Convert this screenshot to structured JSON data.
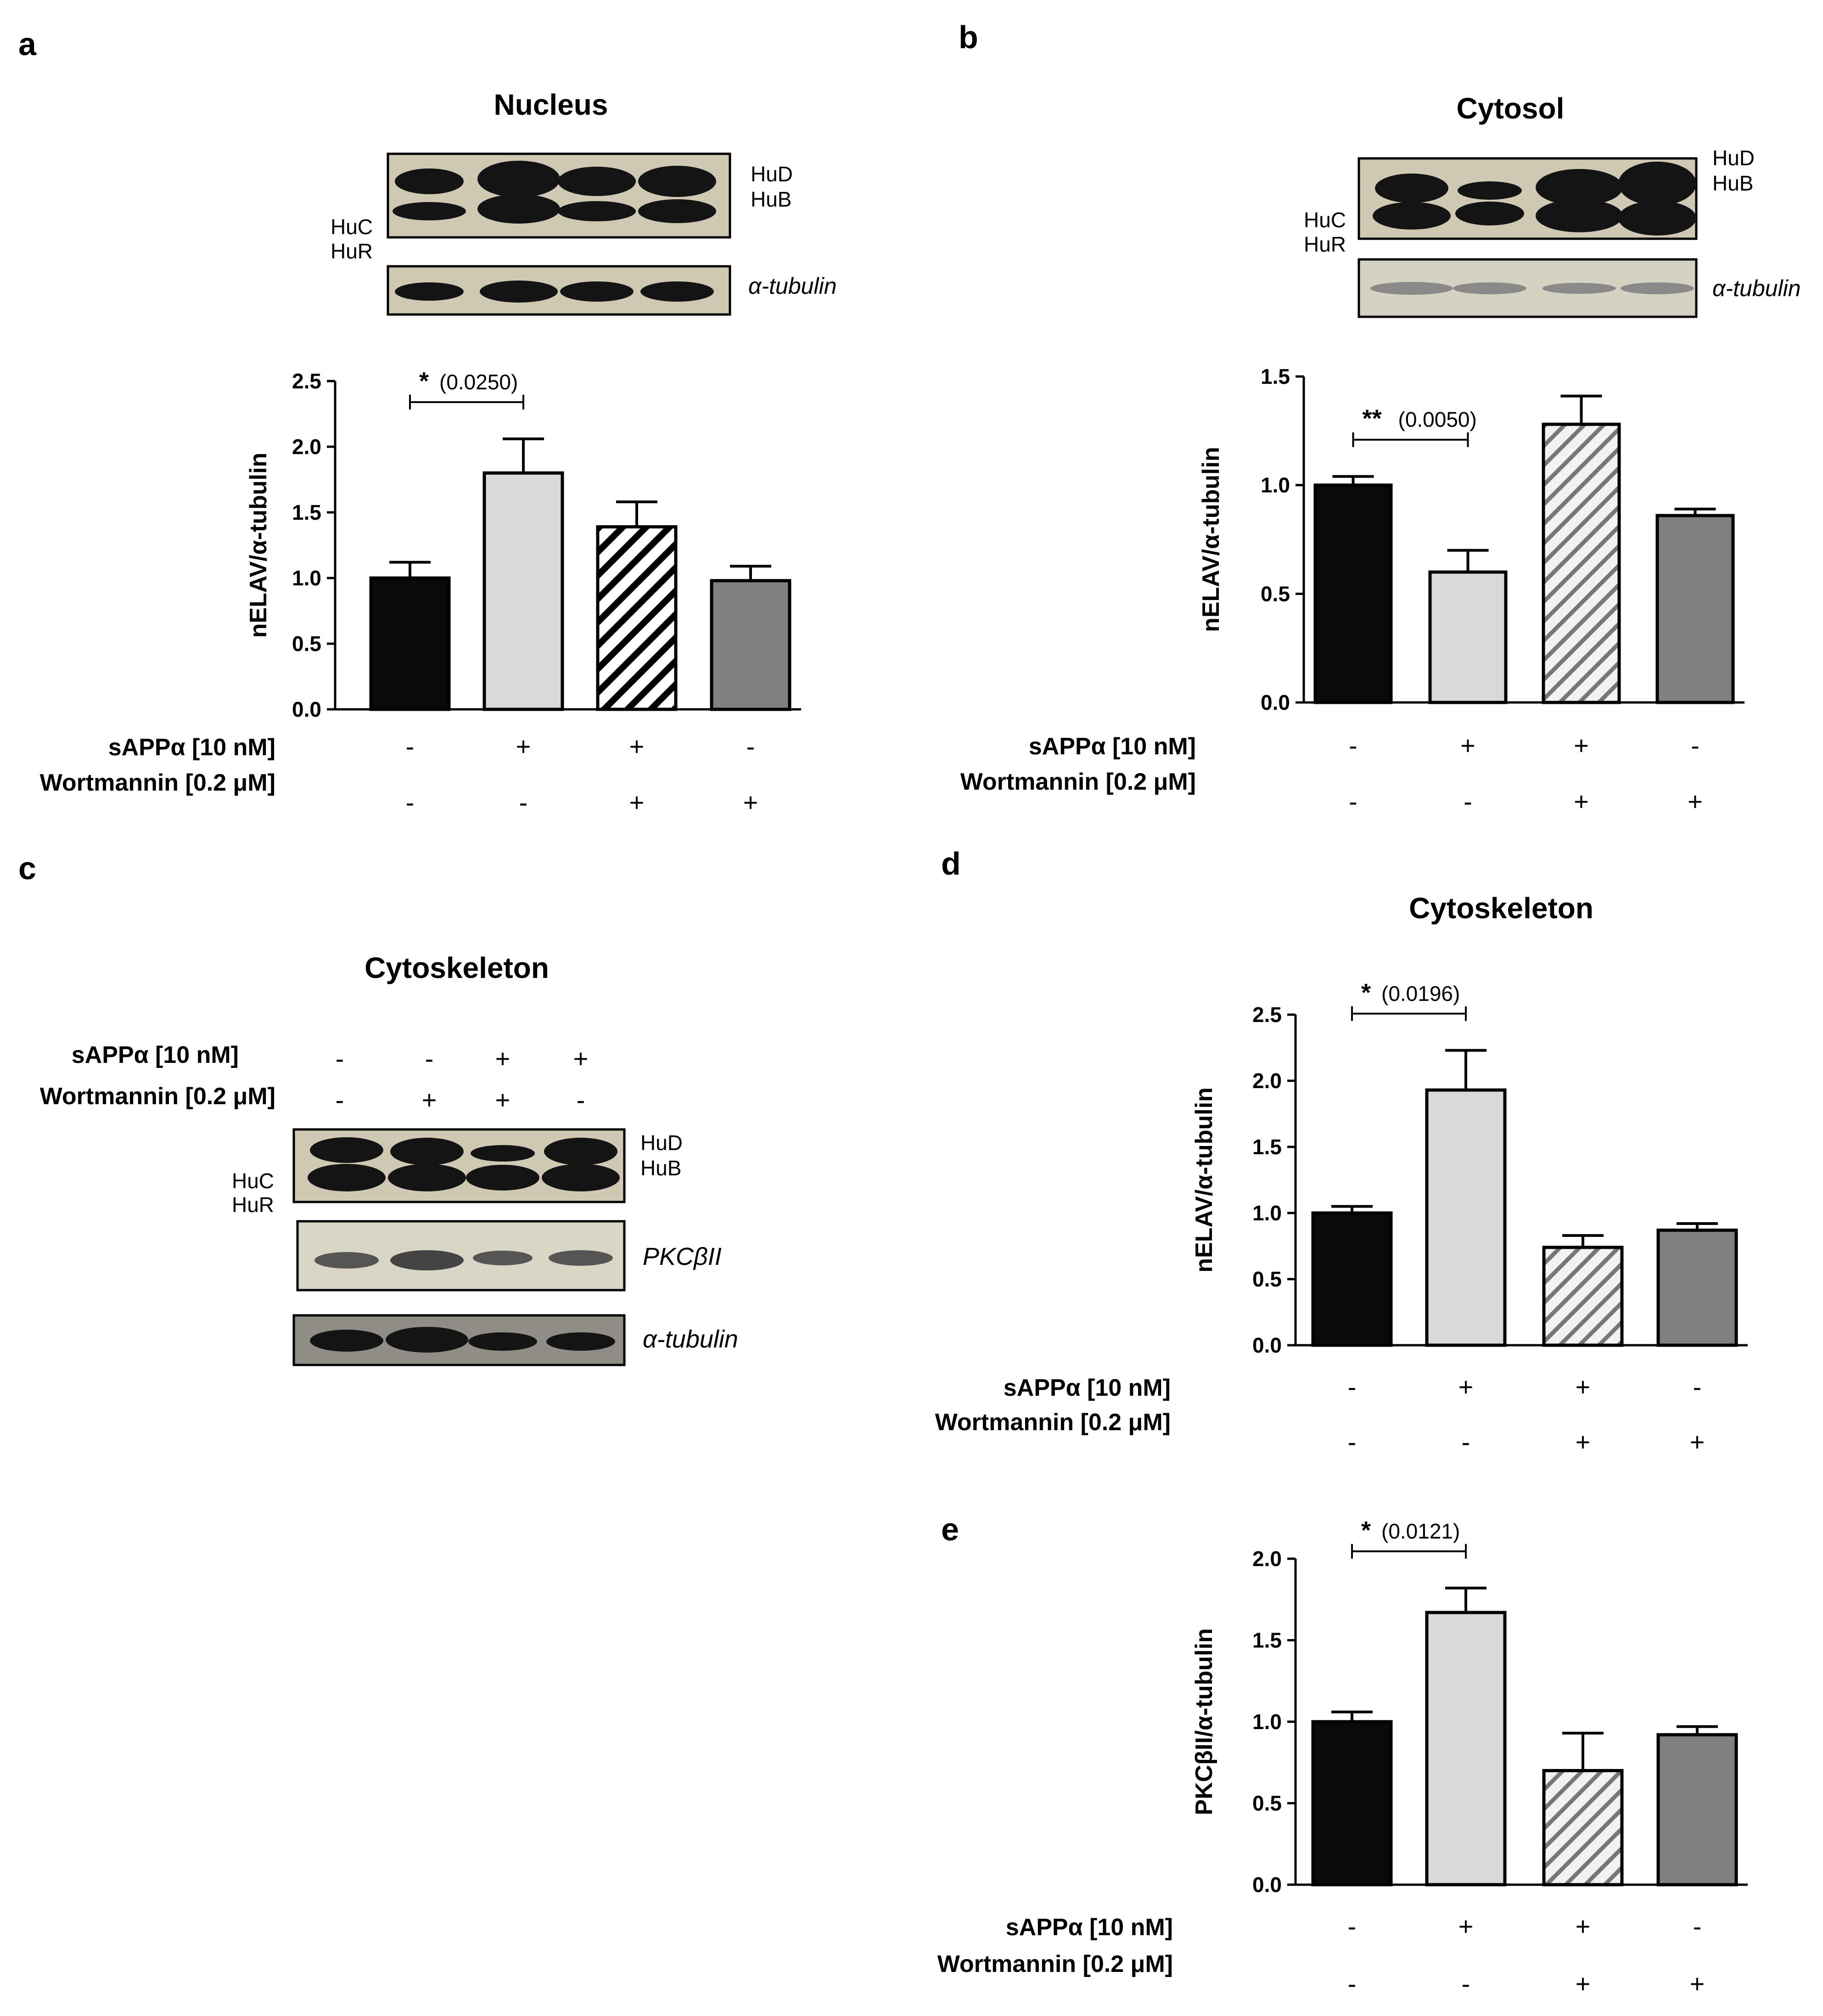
{
  "panel_letters": [
    "a",
    "b",
    "c",
    "d",
    "e"
  ],
  "colors": {
    "control": "#0a0a0a",
    "sapp": "#d9d9d9",
    "both": "#ffffff",
    "wort": "#808080",
    "hatch": "#000000",
    "blot_bg": "#cfc9b4",
    "band": "#141414"
  },
  "band_labels": {
    "hud": "HuD",
    "hub": "HuB",
    "huc": "HuC",
    "hur": "HuR",
    "tubulin": "α-tubulin",
    "pkc": "PKCβII"
  },
  "treatment_labels": {
    "sapp": "sAPPα [10 nM]",
    "wort": "Wortmannin [0.2 μM]"
  },
  "chart_data": [
    {
      "panel": "a",
      "type": "bar",
      "title": "Nucleus",
      "ylabel": "nELAV/α-tubulin",
      "ylim": [
        0,
        2.5
      ],
      "yticks": [
        "0.0",
        "0.5",
        "1.0",
        "1.5",
        "2.0",
        "2.5"
      ],
      "values": [
        1.0,
        1.8,
        1.39,
        0.98
      ],
      "errors": [
        0.12,
        0.26,
        0.19,
        0.11
      ],
      "sapp": [
        "-",
        "+",
        "+",
        "-"
      ],
      "wort": [
        "-",
        "-",
        "+",
        "+"
      ],
      "significance": {
        "from": 0,
        "to": 1,
        "stars": "*",
        "p": "(0.0250)"
      }
    },
    {
      "panel": "b",
      "type": "bar",
      "title": "Cytosol",
      "ylabel": "nELAV/α-tubulin",
      "ylim": [
        0,
        1.5
      ],
      "yticks": [
        "0.0",
        "0.5",
        "1.0",
        "1.5"
      ],
      "values": [
        1.0,
        0.6,
        1.28,
        0.86
      ],
      "errors": [
        0.04,
        0.1,
        0.13,
        0.03
      ],
      "sapp": [
        "-",
        "+",
        "+",
        "-"
      ],
      "wort": [
        "-",
        "-",
        "+",
        "+"
      ],
      "significance": {
        "from": 0,
        "to": 1,
        "stars": "**",
        "p": "(0.0050)"
      }
    },
    {
      "panel": "d",
      "type": "bar",
      "title": "Cytoskeleton",
      "ylabel": "nELAV/α-tubulin",
      "ylim": [
        0,
        2.5
      ],
      "yticks": [
        "0.0",
        "0.5",
        "1.0",
        "1.5",
        "2.0",
        "2.5"
      ],
      "values": [
        1.0,
        1.93,
        0.74,
        0.87
      ],
      "errors": [
        0.05,
        0.3,
        0.09,
        0.05
      ],
      "sapp": [
        "-",
        "+",
        "+",
        "-"
      ],
      "wort": [
        "-",
        "-",
        "+",
        "+"
      ],
      "significance": {
        "from": 0,
        "to": 1,
        "stars": "*",
        "p": "(0.0196)"
      }
    },
    {
      "panel": "e",
      "type": "bar",
      "title": "",
      "ylabel": "PKCβII/α-tubulin",
      "ylim": [
        0,
        2.0
      ],
      "yticks": [
        "0.0",
        "0.5",
        "1.0",
        "1.5",
        "2.0"
      ],
      "values": [
        1.0,
        1.67,
        0.7,
        0.92
      ],
      "errors": [
        0.06,
        0.15,
        0.23,
        0.05
      ],
      "sapp": [
        "-",
        "+",
        "+",
        "-"
      ],
      "wort": [
        "-",
        "-",
        "+",
        "+"
      ],
      "significance": {
        "from": 0,
        "to": 1,
        "stars": "*",
        "p": "(0.0121)"
      }
    }
  ],
  "blot_c": {
    "title": "Cytoskeleton",
    "sapp": [
      "-",
      "-",
      "+",
      "+"
    ],
    "wort": [
      "-",
      "+",
      "+",
      "-"
    ]
  }
}
